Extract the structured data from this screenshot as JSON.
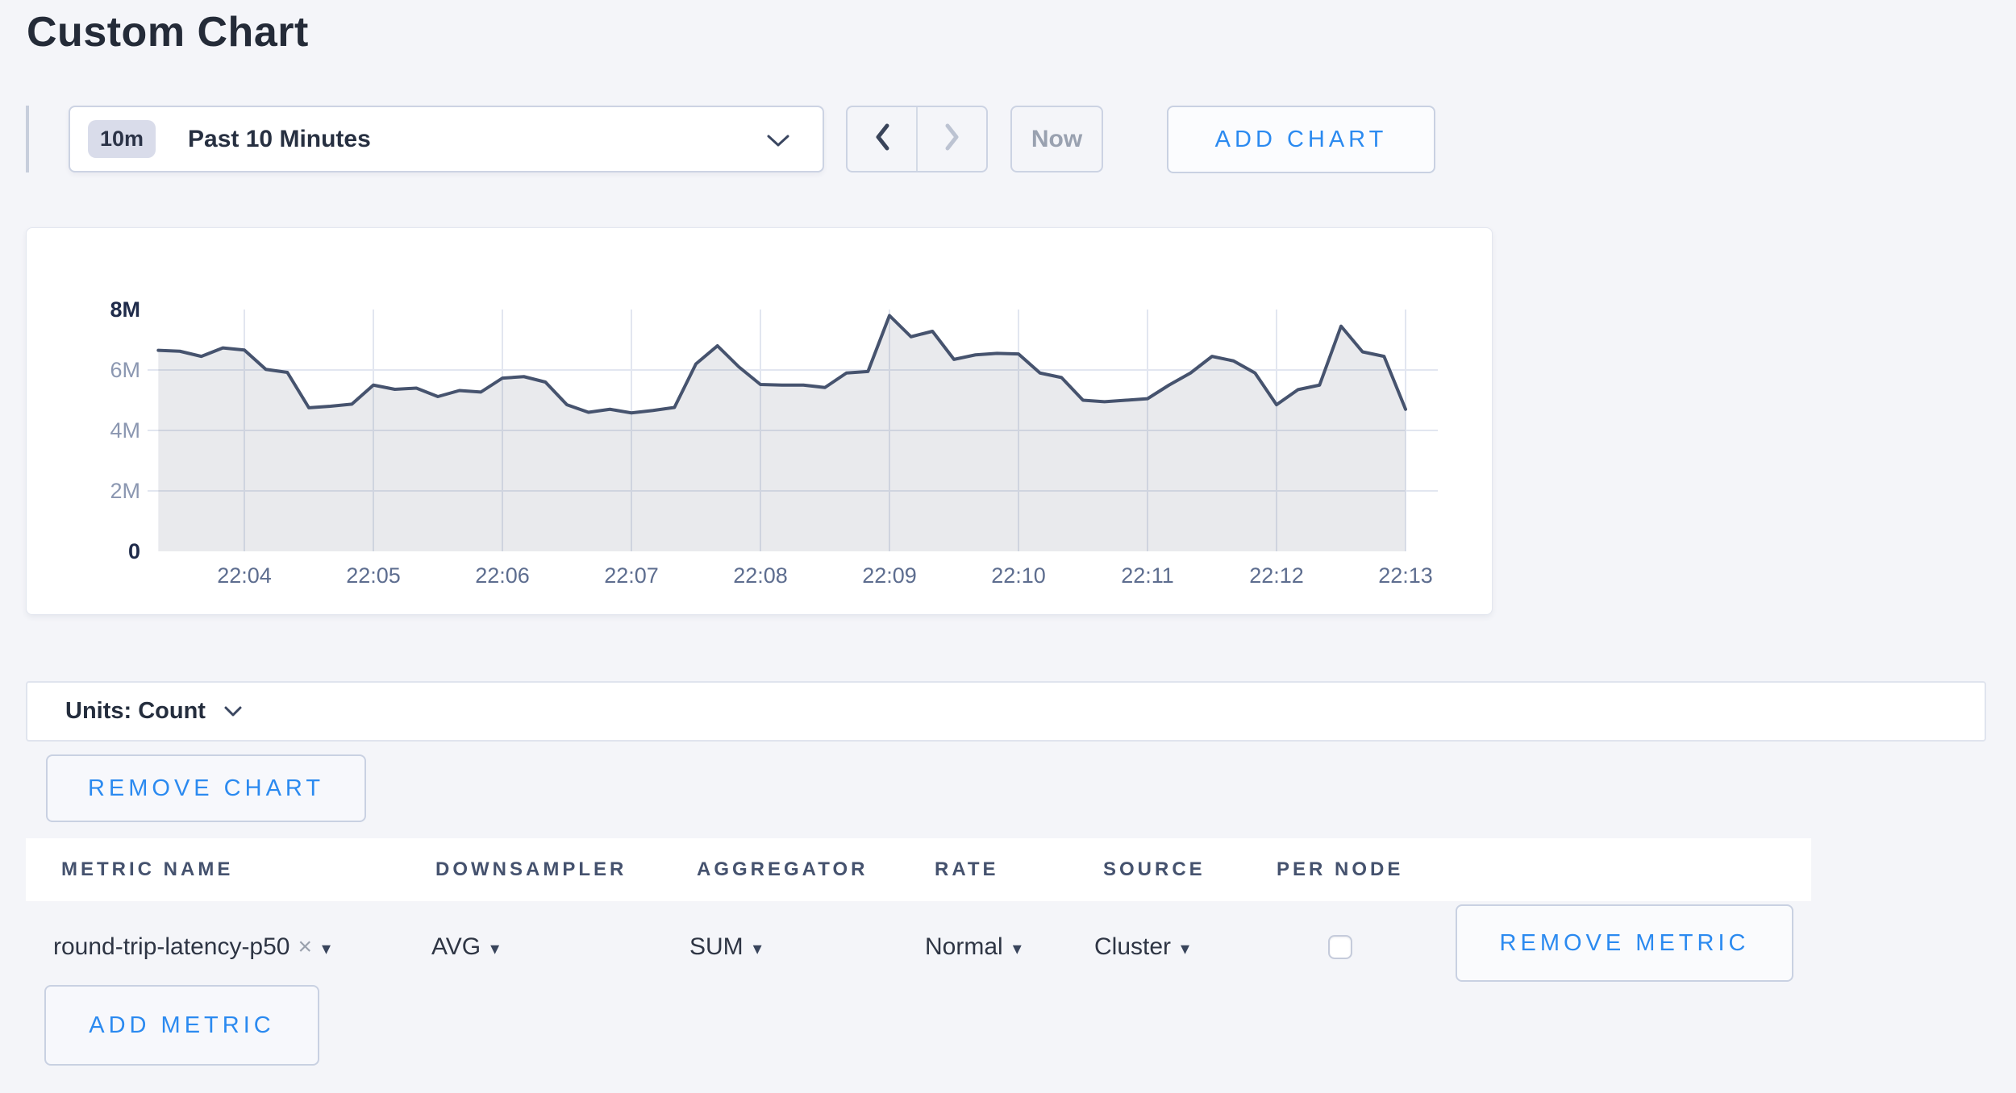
{
  "page_title": "Custom Chart",
  "toolbar": {
    "range_badge": "10m",
    "range_label": "Past 10 Minutes",
    "now_label": "Now",
    "add_chart_label": "ADD CHART"
  },
  "chart_data": {
    "type": "area",
    "title": "",
    "unit": "Count",
    "x_start": "22:03:20",
    "x_step_seconds": 10,
    "x_ticks": [
      "22:04",
      "22:05",
      "22:06",
      "22:07",
      "22:08",
      "22:09",
      "22:10",
      "22:11",
      "22:12",
      "22:13"
    ],
    "y_ticks": [
      "0",
      "2M",
      "4M",
      "6M",
      "8M"
    ],
    "ylim_millions": [
      0,
      8
    ],
    "grid": true,
    "legend": "none",
    "line_color": "#46536e",
    "fill_color": "rgba(70,83,110,0.12)",
    "values_millions": [
      6.65,
      6.62,
      6.45,
      6.73,
      6.66,
      6.02,
      5.92,
      4.75,
      4.8,
      4.87,
      5.5,
      5.36,
      5.4,
      5.12,
      5.32,
      5.27,
      5.73,
      5.78,
      5.6,
      4.85,
      4.6,
      4.7,
      4.58,
      4.66,
      4.76,
      6.2,
      6.8,
      6.1,
      5.52,
      5.5,
      5.5,
      5.42,
      5.9,
      5.95,
      7.8,
      7.1,
      7.28,
      6.35,
      6.5,
      6.55,
      6.53,
      5.9,
      5.75,
      5.0,
      4.95,
      5.0,
      5.05,
      5.5,
      5.9,
      6.45,
      6.3,
      5.9,
      4.85,
      5.35,
      5.5,
      7.45,
      6.6,
      6.45,
      4.7
    ]
  },
  "units_bar": {
    "label": "Units: Count"
  },
  "remove_chart_label": "REMOVE CHART",
  "metrics_table": {
    "columns": [
      "METRIC NAME",
      "DOWNSAMPLER",
      "AGGREGATOR",
      "RATE",
      "SOURCE",
      "PER NODE"
    ],
    "rows": [
      {
        "metric_name": "round-trip-latency-p50",
        "downsampler": "AVG",
        "aggregator": "SUM",
        "rate": "Normal",
        "source": "Cluster",
        "per_node_checked": false,
        "remove_label": "REMOVE METRIC"
      }
    ],
    "add_metric_label": "ADD METRIC"
  },
  "icons": {
    "caret": "▾",
    "remove": "×"
  },
  "colors": {
    "accent_blue": "#2b8af0",
    "page_background": "#f4f5f9",
    "chart_line": "#46536e",
    "grid_line": "#e2e6f0"
  }
}
